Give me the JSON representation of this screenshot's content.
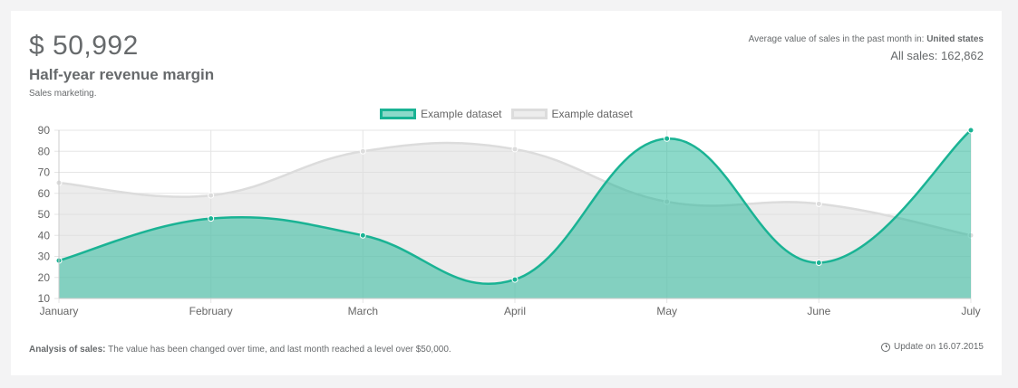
{
  "header": {
    "big_value": "$ 50,992",
    "title": "Half-year revenue margin",
    "subtitle": "Sales marketing.",
    "avg_label": "Average value of sales in the past month in:",
    "avg_region": "United states",
    "all_sales": "All sales: 162,862"
  },
  "footer": {
    "analysis_label": "Analysis of sales:",
    "analysis_text": "The value has been changed over time, and last month reached a level over $50,000.",
    "update_text": "Update on 16.07.2015"
  },
  "colors": {
    "series1_fill": "#1ab394",
    "series1_line": "#1ab394",
    "series2_fill": "#dcdcdc",
    "series2_line": "#dcdcdc",
    "grid": "#e5e5e5",
    "tick": "#666666"
  },
  "chart_data": {
    "type": "area",
    "categories": [
      "January",
      "February",
      "March",
      "April",
      "May",
      "June",
      "July"
    ],
    "ylim": [
      10,
      90
    ],
    "yticks": [
      10,
      20,
      30,
      40,
      50,
      60,
      70,
      80,
      90
    ],
    "grid": true,
    "legend": "top-center",
    "series": [
      {
        "name": "Example dataset",
        "values": [
          28,
          48,
          40,
          19,
          86,
          27,
          90
        ]
      },
      {
        "name": "Example dataset",
        "values": [
          65,
          59,
          80,
          81,
          56,
          55,
          40
        ]
      }
    ]
  }
}
